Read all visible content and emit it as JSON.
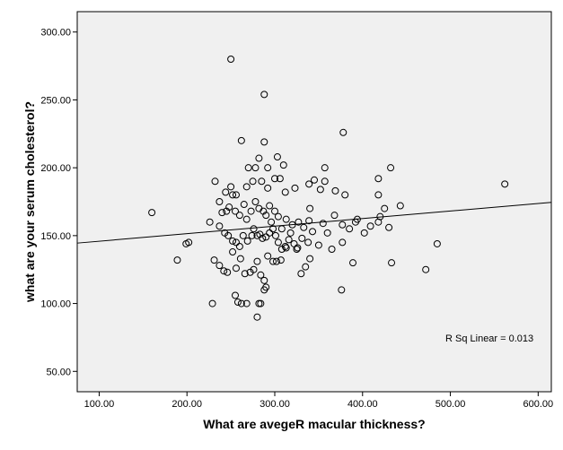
{
  "chart_data": {
    "type": "scatter",
    "xlabel": "What are avegeR macular thickness?",
    "ylabel": "what are your serum cholesterol?",
    "xlim": [
      75,
      615
    ],
    "ylim": [
      35,
      315
    ],
    "xticks": [
      100,
      200,
      300,
      400,
      500,
      600
    ],
    "yticks": [
      50,
      100,
      150,
      200,
      250,
      300
    ],
    "xtick_labels": [
      "100.00",
      "200.00",
      "300.00",
      "400.00",
      "500.00",
      "600.00"
    ],
    "ytick_labels": [
      "50.00",
      "100.00",
      "150.00",
      "200.00",
      "250.00",
      "300.00"
    ],
    "grid": false,
    "background_color": "#f0f0f0",
    "marker": "open-circle",
    "annotation": "R Sq Linear = 0.013",
    "fit_line": {
      "x": [
        75,
        615
      ],
      "y": [
        144.5,
        174.5
      ]
    },
    "points": [
      [
        250,
        280
      ],
      [
        288,
        254
      ],
      [
        378,
        226
      ],
      [
        262,
        220
      ],
      [
        288,
        219
      ],
      [
        282,
        207
      ],
      [
        303,
        208
      ],
      [
        232,
        190
      ],
      [
        270,
        200
      ],
      [
        278,
        200
      ],
      [
        292,
        200
      ],
      [
        310,
        202
      ],
      [
        357,
        200
      ],
      [
        432,
        200
      ],
      [
        244,
        182
      ],
      [
        252,
        180
      ],
      [
        256,
        180
      ],
      [
        250,
        186
      ],
      [
        268,
        186
      ],
      [
        275,
        190
      ],
      [
        285,
        190
      ],
      [
        292,
        185
      ],
      [
        300,
        192
      ],
      [
        306,
        192
      ],
      [
        312,
        182
      ],
      [
        323,
        185
      ],
      [
        339,
        188
      ],
      [
        345,
        191
      ],
      [
        352,
        184
      ],
      [
        357,
        190
      ],
      [
        369,
        183
      ],
      [
        380,
        180
      ],
      [
        418,
        192
      ],
      [
        418,
        180
      ],
      [
        237,
        175
      ],
      [
        240,
        167
      ],
      [
        245,
        168
      ],
      [
        248,
        171
      ],
      [
        255,
        168
      ],
      [
        260,
        165
      ],
      [
        265,
        173
      ],
      [
        268,
        162
      ],
      [
        273,
        168
      ],
      [
        278,
        175
      ],
      [
        282,
        170
      ],
      [
        287,
        168
      ],
      [
        290,
        165
      ],
      [
        294,
        172
      ],
      [
        296,
        160
      ],
      [
        300,
        168
      ],
      [
        304,
        164
      ],
      [
        308,
        155
      ],
      [
        313,
        162
      ],
      [
        318,
        152
      ],
      [
        320,
        158
      ],
      [
        327,
        160
      ],
      [
        333,
        156
      ],
      [
        339,
        161
      ],
      [
        340,
        170
      ],
      [
        355,
        159
      ],
      [
        360,
        152
      ],
      [
        368,
        165
      ],
      [
        377,
        158
      ],
      [
        385,
        155
      ],
      [
        392,
        160
      ],
      [
        394,
        162
      ],
      [
        402,
        152
      ],
      [
        409,
        157
      ],
      [
        418,
        160
      ],
      [
        420,
        164
      ],
      [
        425,
        170
      ],
      [
        430,
        156
      ],
      [
        443,
        172
      ],
      [
        562,
        188
      ],
      [
        160,
        167
      ],
      [
        226,
        160
      ],
      [
        237,
        157
      ],
      [
        243,
        152
      ],
      [
        247,
        150
      ],
      [
        252,
        146
      ],
      [
        256,
        145
      ],
      [
        260,
        142
      ],
      [
        264,
        150
      ],
      [
        269,
        146
      ],
      [
        274,
        150
      ],
      [
        276,
        155
      ],
      [
        280,
        150
      ],
      [
        283,
        151
      ],
      [
        286,
        148
      ],
      [
        290,
        149
      ],
      [
        294,
        152
      ],
      [
        298,
        155
      ],
      [
        301,
        150
      ],
      [
        304,
        145
      ],
      [
        308,
        140
      ],
      [
        312,
        142
      ],
      [
        316,
        147
      ],
      [
        322,
        144
      ],
      [
        326,
        141
      ],
      [
        331,
        148
      ],
      [
        338,
        145
      ],
      [
        343,
        153
      ],
      [
        350,
        143
      ],
      [
        365,
        140
      ],
      [
        377,
        145
      ],
      [
        202,
        145
      ],
      [
        199,
        144
      ],
      [
        231,
        132
      ],
      [
        237,
        128
      ],
      [
        242,
        124
      ],
      [
        246,
        123
      ],
      [
        252,
        138
      ],
      [
        256,
        126
      ],
      [
        261,
        133
      ],
      [
        266,
        122
      ],
      [
        272,
        123
      ],
      [
        276,
        125
      ],
      [
        280,
        131
      ],
      [
        284,
        121
      ],
      [
        288,
        117
      ],
      [
        292,
        135
      ],
      [
        298,
        131
      ],
      [
        302,
        131
      ],
      [
        307,
        132
      ],
      [
        313,
        141
      ],
      [
        325,
        140
      ],
      [
        335,
        127
      ],
      [
        340,
        133
      ],
      [
        330,
        122
      ],
      [
        389,
        130
      ],
      [
        433,
        130
      ],
      [
        472,
        125
      ],
      [
        485,
        144
      ],
      [
        189,
        132
      ],
      [
        255,
        106
      ],
      [
        258,
        101
      ],
      [
        262,
        100
      ],
      [
        268,
        100
      ],
      [
        282,
        100
      ],
      [
        284,
        100
      ],
      [
        288,
        110
      ],
      [
        290,
        112
      ],
      [
        280,
        90
      ],
      [
        229,
        100
      ],
      [
        376,
        110
      ]
    ]
  }
}
